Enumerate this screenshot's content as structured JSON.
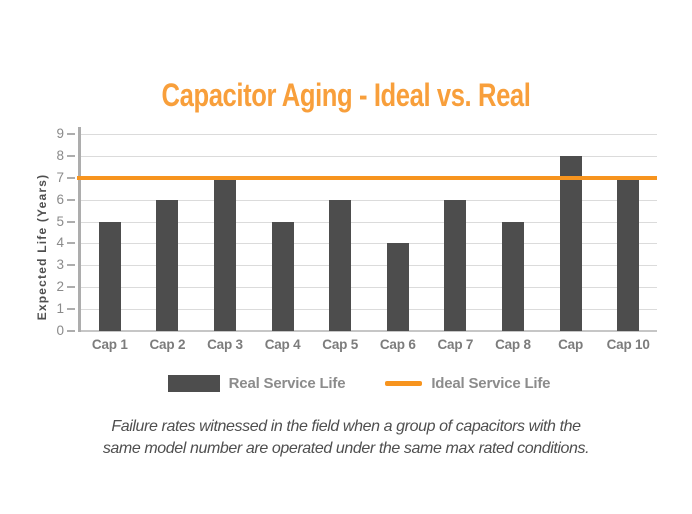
{
  "title": {
    "text": "Capacitor Aging - Ideal vs. Real",
    "color": "#F89F3B"
  },
  "chart_data": {
    "type": "bar",
    "title": "Capacitor Aging - Ideal vs. Real",
    "categories": [
      "Cap 1",
      "Cap 2",
      "Cap 3",
      "Cap 4",
      "Cap 5",
      "Cap 6",
      "Cap 7",
      "Cap 8",
      "Cap",
      "Cap 10"
    ],
    "series": [
      {
        "name": "Real Service Life",
        "type": "bar",
        "color": "#4D4D4D",
        "values": [
          5,
          6,
          7,
          5,
          6,
          4,
          6,
          5,
          8,
          7
        ]
      },
      {
        "name": "Ideal Service Life",
        "type": "line",
        "color": "#F7941E",
        "values": [
          7,
          7,
          7,
          7,
          7,
          7,
          7,
          7,
          7,
          7
        ]
      }
    ],
    "xlabel": "",
    "ylabel": "Expected Life (Years)",
    "ylim": [
      0,
      9
    ],
    "yticks": [
      0,
      1,
      2,
      3,
      4,
      5,
      6,
      7,
      8,
      9
    ],
    "grid": true,
    "legend_position": "bottom",
    "colors": {
      "bar": "#4D4D4D",
      "ideal_line": "#F7941E",
      "gridline": "#DBDBDB",
      "axis": "#ADADAD",
      "tick_text": "#8A8A8A",
      "category_text": "#7C7C7C"
    }
  },
  "legend": {
    "items": [
      {
        "label": "Real Service Life",
        "swatch": "bar",
        "color": "#4D4D4D"
      },
      {
        "label": "Ideal Service Life",
        "swatch": "line",
        "color": "#F7941E"
      }
    ]
  },
  "caption": {
    "line1": "Failure rates witnessed in the field when a group of capacitors with the",
    "line2": "same model number are operated under the same max rated conditions."
  }
}
